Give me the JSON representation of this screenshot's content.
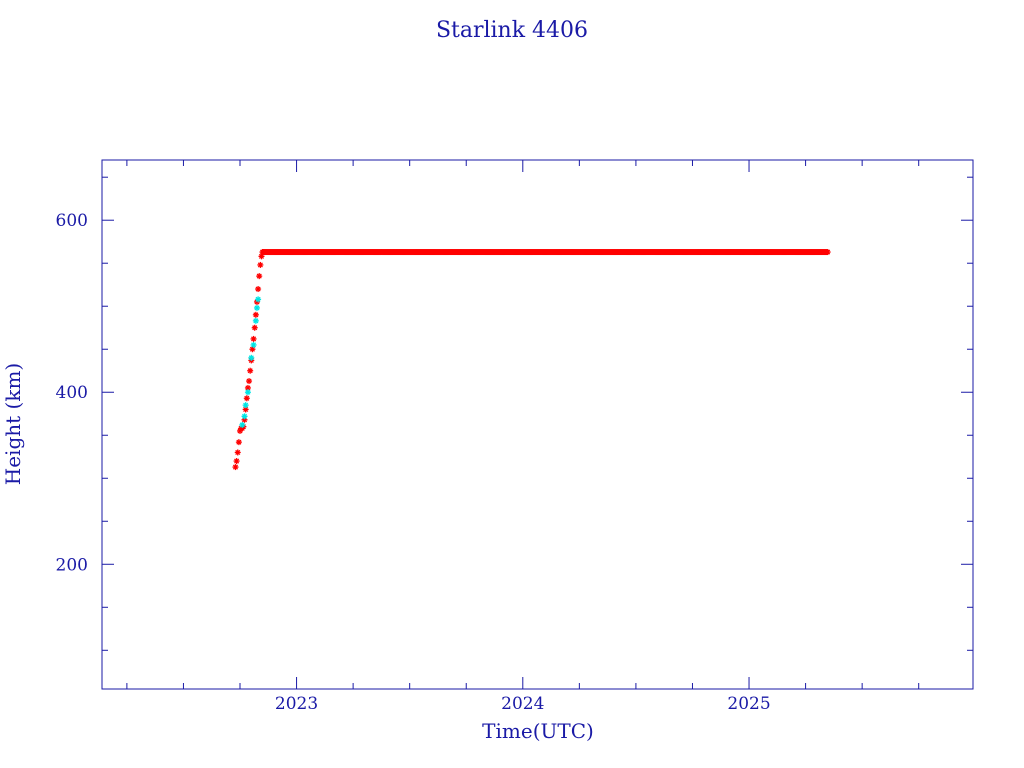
{
  "chart_data": {
    "type": "scatter",
    "title": "Starlink 4406",
    "xlabel": "Time(UTC)",
    "ylabel": "Height (km)",
    "xlim": [
      2022.14,
      2025.99
    ],
    "ylim": [
      55,
      670
    ],
    "x_ticks": [
      2023,
      2024,
      2025
    ],
    "x_tick_labels": [
      "2023",
      "2024",
      "2025"
    ],
    "y_ticks": [
      200,
      400,
      600
    ],
    "y_tick_labels": [
      "200",
      "400",
      "600"
    ],
    "grid": false,
    "colors": {
      "axis": "#1a1aa6",
      "primary_points": "#ff0000",
      "secondary_points": "#00e5e5"
    },
    "series": [
      {
        "color": "#ff0000",
        "points": [
          [
            2022.73,
            313
          ],
          [
            2022.735,
            320
          ],
          [
            2022.74,
            330
          ],
          [
            2022.745,
            342
          ],
          [
            2022.75,
            355
          ],
          [
            2022.755,
            358
          ],
          [
            2022.76,
            358
          ],
          [
            2022.765,
            360
          ],
          [
            2022.77,
            368
          ],
          [
            2022.775,
            380
          ],
          [
            2022.78,
            393
          ],
          [
            2022.785,
            405
          ],
          [
            2022.79,
            413
          ],
          [
            2022.795,
            425
          ],
          [
            2022.8,
            437
          ],
          [
            2022.805,
            450
          ],
          [
            2022.81,
            462
          ],
          [
            2022.815,
            475
          ],
          [
            2022.82,
            490
          ],
          [
            2022.825,
            505
          ],
          [
            2022.83,
            520
          ],
          [
            2022.835,
            535
          ],
          [
            2022.84,
            548
          ],
          [
            2022.845,
            558
          ],
          [
            2022.85,
            563
          ]
        ],
        "plateau": {
          "x_start": 2022.85,
          "x_end": 2025.35,
          "y": 563
        }
      },
      {
        "color": "#00e5e5",
        "points": [
          [
            2022.76,
            362
          ],
          [
            2022.77,
            372
          ],
          [
            2022.775,
            385
          ],
          [
            2022.785,
            400
          ],
          [
            2022.8,
            440
          ],
          [
            2022.81,
            455
          ],
          [
            2022.82,
            483
          ],
          [
            2022.825,
            498
          ],
          [
            2022.83,
            508
          ]
        ]
      }
    ]
  }
}
